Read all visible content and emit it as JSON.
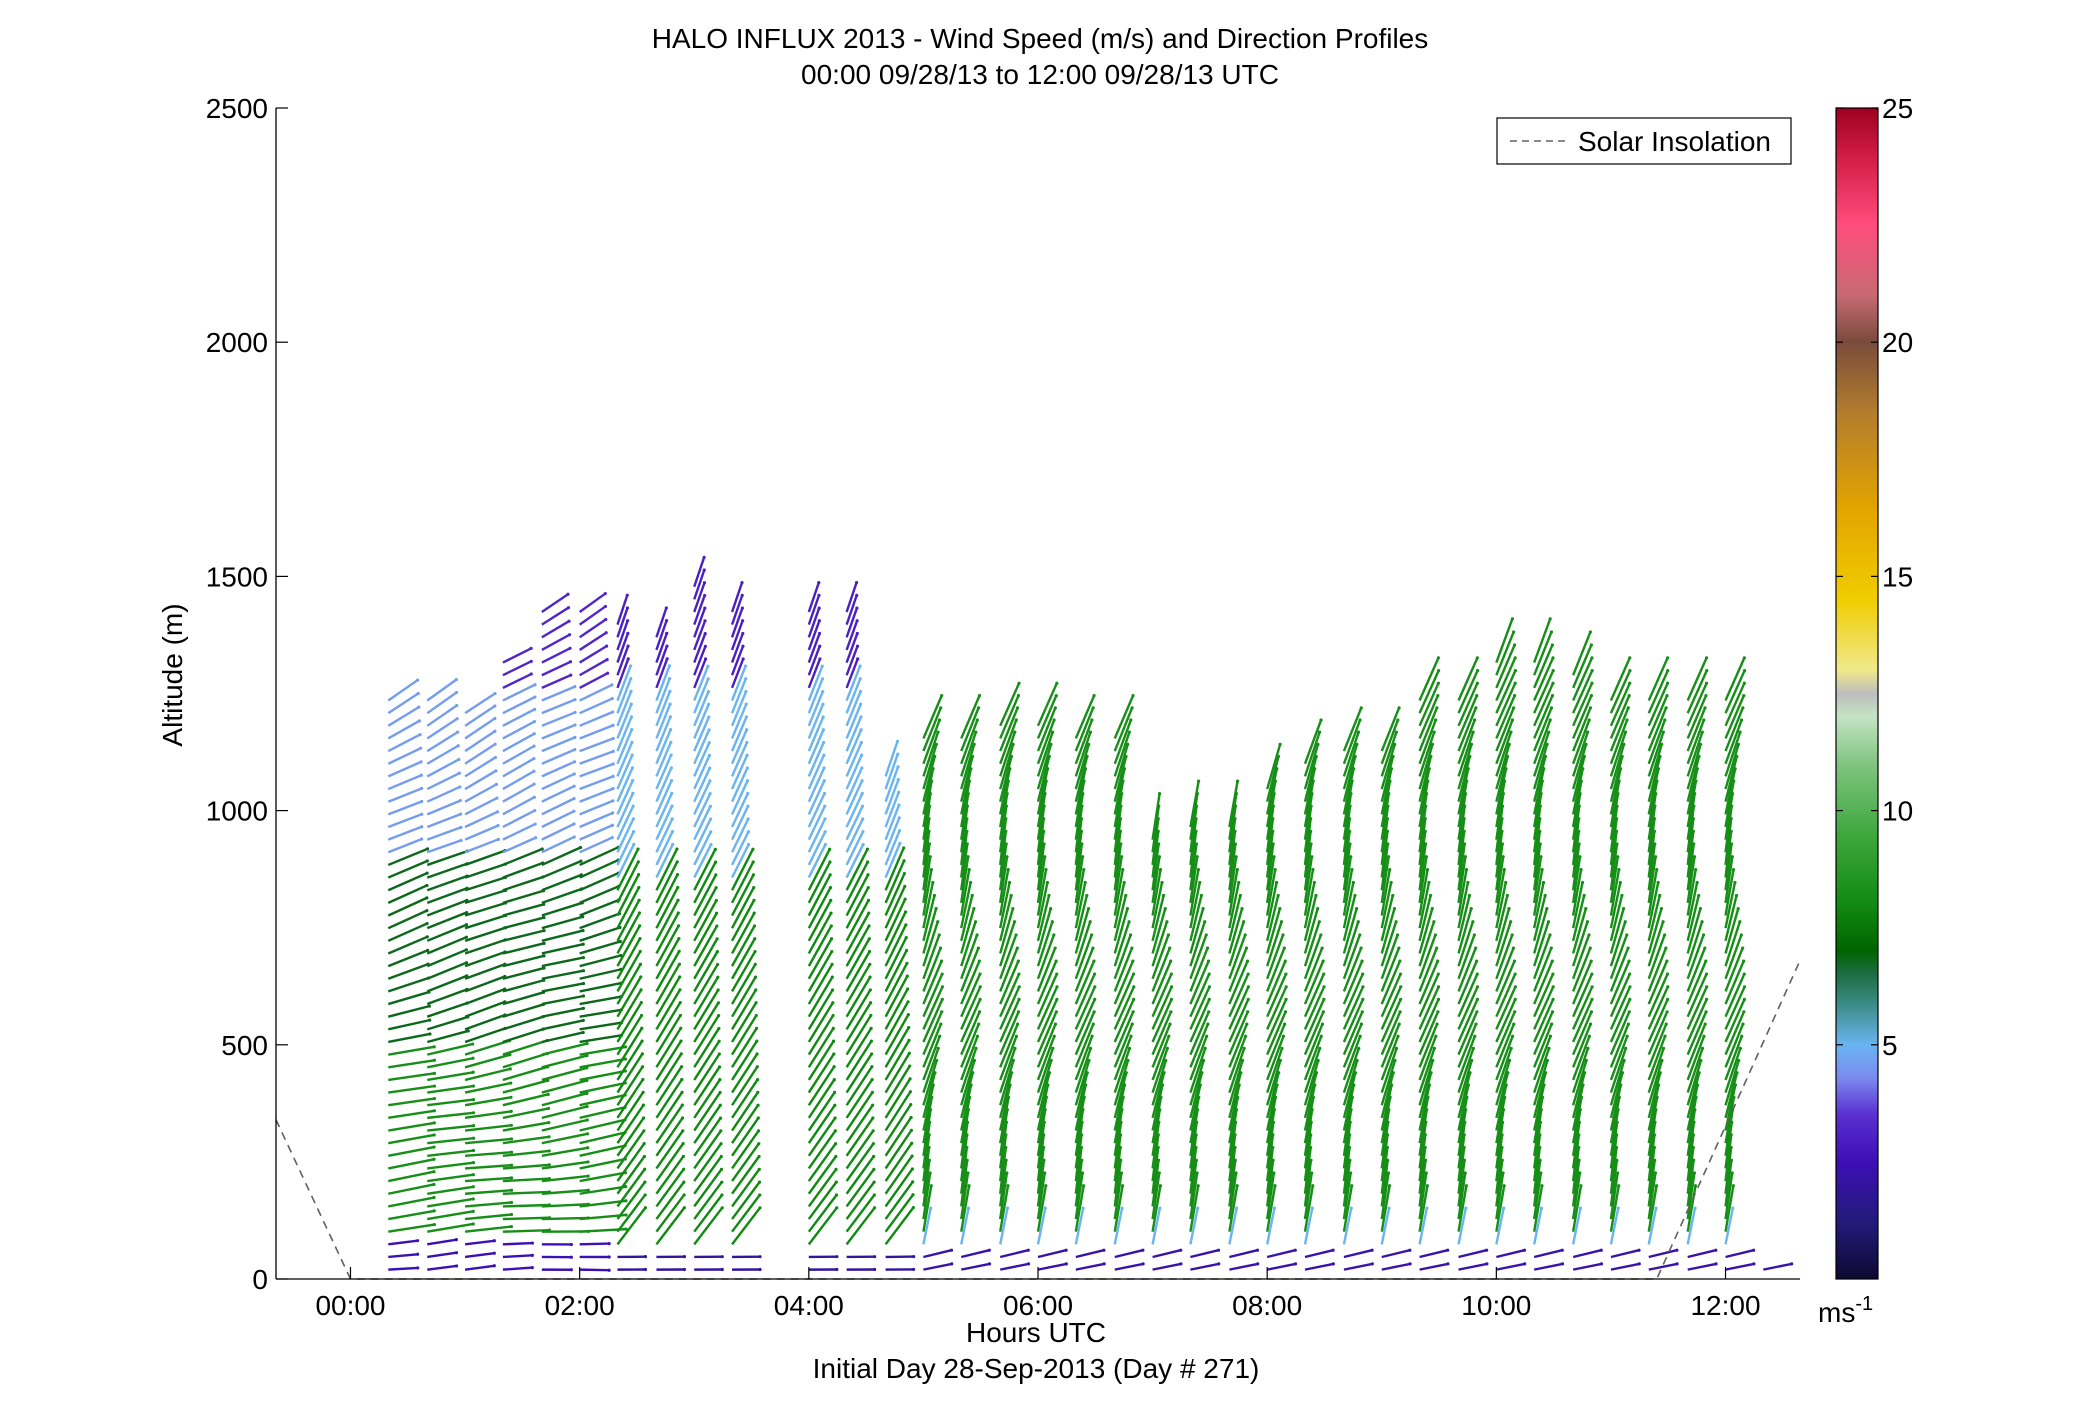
{
  "chart_data": {
    "type": "vector-profile",
    "title": "HALO INFLUX 2013 - Wind Speed (m/s) and Direction Profiles",
    "subtitle": "00:00 09/28/13 to 12:00 09/28/13  UTC",
    "xlabel": "Hours UTC",
    "xlabel2": "Initial Day 28-Sep-2013 (Day # 271)",
    "ylabel": "Altitude (m)",
    "xlim": [
      -0.65,
      12.65
    ],
    "ylim": [
      0,
      2500
    ],
    "x_ticks": [
      0,
      2,
      4,
      6,
      8,
      10,
      12
    ],
    "x_tick_labels": [
      "00:00",
      "02:00",
      "04:00",
      "06:00",
      "08:00",
      "10:00",
      "12:00"
    ],
    "y_ticks": [
      0,
      500,
      1000,
      1500,
      2000,
      2500
    ],
    "y_tick_labels": [
      "0",
      "500",
      "1000",
      "1500",
      "2000",
      "2500"
    ],
    "legend": {
      "entries": [
        "Solar Insolation"
      ],
      "placement": "top-right",
      "line_style": "dashed",
      "line_color": "#606060"
    },
    "colorbar": {
      "label": "ms",
      "label_exponent": "-1",
      "range": [
        0,
        25
      ],
      "ticks": [
        5,
        10,
        15,
        20,
        25
      ],
      "tick_labels": [
        "5",
        "10",
        "15",
        "20",
        "25"
      ],
      "colors": [
        [
          0,
          "#0c0a30"
        ],
        [
          1.2,
          "#231a7a"
        ],
        [
          2.5,
          "#3c10b4"
        ],
        [
          3.5,
          "#5a2fd0"
        ],
        [
          4.3,
          "#7b8bf0"
        ],
        [
          5,
          "#6ab4f0"
        ],
        [
          5.8,
          "#3f8f8f"
        ],
        [
          6.5,
          "#1d6d44"
        ],
        [
          7,
          "#006400"
        ],
        [
          8,
          "#118a11"
        ],
        [
          9.5,
          "#3ea83e"
        ],
        [
          11,
          "#80c480"
        ],
        [
          12,
          "#c4e3c4"
        ],
        [
          12.5,
          "#bdbdbd"
        ],
        [
          13,
          "#f0e98a"
        ],
        [
          14.5,
          "#f0cd00"
        ],
        [
          16.5,
          "#e2a300"
        ],
        [
          18.5,
          "#b37d2d"
        ],
        [
          20,
          "#7a4b3c"
        ],
        [
          21,
          "#c76a72"
        ],
        [
          22.5,
          "#ff4d7d"
        ],
        [
          24,
          "#d01b45"
        ],
        [
          25,
          "#9e0020"
        ]
      ]
    },
    "solar_insolation": {
      "x": [
        -0.65,
        0.0,
        11.4,
        12.65
      ],
      "y": [
        340,
        0,
        0,
        680
      ]
    },
    "profiles": [
      {
        "t": 0.33,
        "top": 1250
      },
      {
        "t": 0.67,
        "top": 1240
      },
      {
        "t": 1.0,
        "top": 1230
      },
      {
        "t": 1.33,
        "top": 1330
      },
      {
        "t": 1.67,
        "top": 1450
      },
      {
        "t": 2.0,
        "top": 1440
      },
      {
        "t": 2.33,
        "top": 1400
      },
      {
        "t": 2.67,
        "top": 1390
      },
      {
        "t": 3.0,
        "top": 1490
      },
      {
        "t": 3.33,
        "top": 1450
      },
      {
        "t": 4.0,
        "top": 1450
      },
      {
        "t": 4.33,
        "top": 1440
      },
      {
        "t": 4.67,
        "top": 1090
      },
      {
        "t": 5.0,
        "top": 1160
      },
      {
        "t": 5.33,
        "top": 1160
      },
      {
        "t": 5.67,
        "top": 1200
      },
      {
        "t": 6.0,
        "top": 1200
      },
      {
        "t": 6.33,
        "top": 1170
      },
      {
        "t": 6.67,
        "top": 1170
      },
      {
        "t": 7.0,
        "top": 960
      },
      {
        "t": 7.33,
        "top": 980
      },
      {
        "t": 7.67,
        "top": 990
      },
      {
        "t": 8.0,
        "top": 1060
      },
      {
        "t": 8.33,
        "top": 1100
      },
      {
        "t": 8.67,
        "top": 1130
      },
      {
        "t": 9.0,
        "top": 1130
      },
      {
        "t": 9.33,
        "top": 1250
      },
      {
        "t": 9.67,
        "top": 1250
      },
      {
        "t": 10.0,
        "top": 1330
      },
      {
        "t": 10.33,
        "top": 1330
      },
      {
        "t": 10.67,
        "top": 1290
      },
      {
        "t": 11.0,
        "top": 1250
      },
      {
        "t": 11.33,
        "top": 1250
      },
      {
        "t": 11.67,
        "top": 1250
      },
      {
        "t": 12.0,
        "top": 1250
      },
      {
        "t": 12.33,
        "top": 40
      }
    ],
    "profile_spacing_m": 27
  }
}
